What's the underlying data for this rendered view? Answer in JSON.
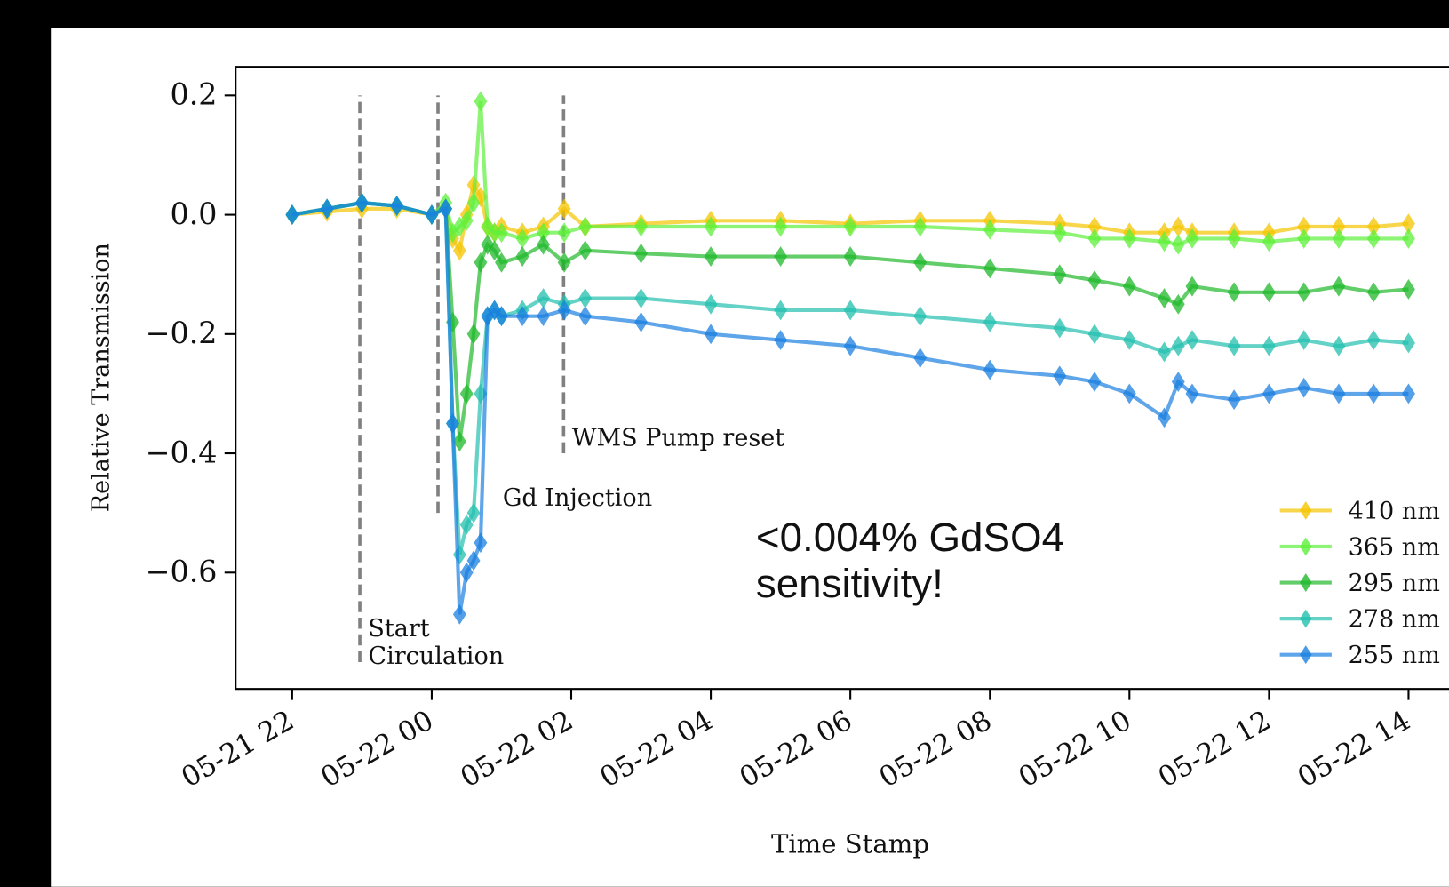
{
  "chart_data": {
    "type": "line",
    "xlabel": "Time Stamp",
    "ylabel": "Relative Transmission",
    "x": [
      0,
      0.5,
      1,
      1.5,
      2,
      2.2,
      2.3,
      2.4,
      2.5,
      2.6,
      2.7,
      2.8,
      2.9,
      3.0,
      3.3,
      3.6,
      3.9,
      4.2,
      5,
      6,
      7,
      8,
      9,
      10,
      11,
      11.5,
      12,
      12.5,
      12.7,
      12.9,
      13.5,
      14,
      14.5,
      15,
      15.5,
      16
    ],
    "xlim": [
      -0.81,
      16.58
    ],
    "xticks": [
      {
        "value": 0,
        "label": "05-21 22"
      },
      {
        "value": 2,
        "label": "05-22 00"
      },
      {
        "value": 4,
        "label": "05-22 02"
      },
      {
        "value": 6,
        "label": "05-22 04"
      },
      {
        "value": 8,
        "label": "05-22 06"
      },
      {
        "value": 10,
        "label": "05-22 08"
      },
      {
        "value": 12,
        "label": "05-22 10"
      },
      {
        "value": 14,
        "label": "05-22 12"
      },
      {
        "value": 16,
        "label": "05-22 14"
      }
    ],
    "ylim": [
      -0.795,
      0.248
    ],
    "yticks": [
      {
        "value": 0.2,
        "label": "0.2"
      },
      {
        "value": 0.0,
        "label": "0.0"
      },
      {
        "value": -0.2,
        "label": "−0.2"
      },
      {
        "value": -0.4,
        "label": "−0.4"
      },
      {
        "value": -0.6,
        "label": "−0.6"
      }
    ],
    "legend": "lower right",
    "series": [
      {
        "name": "410 nm",
        "color": "#f5c400",
        "values": [
          0,
          0.005,
          0.01,
          0.01,
          0,
          0.01,
          -0.04,
          -0.06,
          0,
          0.05,
          0.03,
          -0.02,
          -0.03,
          -0.02,
          -0.03,
          -0.02,
          0.01,
          -0.02,
          -0.015,
          -0.01,
          -0.01,
          -0.015,
          -0.01,
          -0.01,
          -0.015,
          -0.02,
          -0.03,
          -0.03,
          -0.02,
          -0.03,
          -0.03,
          -0.03,
          -0.02,
          -0.02,
          -0.02,
          -0.015
        ]
      },
      {
        "name": "365 nm",
        "color": "#5ef03a",
        "values": [
          0,
          0.01,
          0.02,
          0.015,
          0,
          0.02,
          -0.03,
          -0.02,
          -0.01,
          0.02,
          0.19,
          -0.02,
          -0.03,
          -0.03,
          -0.04,
          -0.03,
          -0.03,
          -0.02,
          -0.02,
          -0.02,
          -0.02,
          -0.02,
          -0.02,
          -0.025,
          -0.03,
          -0.04,
          -0.04,
          -0.045,
          -0.05,
          -0.04,
          -0.04,
          -0.045,
          -0.04,
          -0.04,
          -0.04,
          -0.04
        ]
      },
      {
        "name": "295 nm",
        "color": "#1fb82a",
        "values": [
          0,
          0.01,
          0.02,
          0.015,
          0,
          0.01,
          -0.18,
          -0.38,
          -0.3,
          -0.2,
          -0.08,
          -0.05,
          -0.06,
          -0.08,
          -0.07,
          -0.05,
          -0.08,
          -0.06,
          -0.065,
          -0.07,
          -0.07,
          -0.07,
          -0.08,
          -0.09,
          -0.1,
          -0.11,
          -0.12,
          -0.14,
          -0.15,
          -0.12,
          -0.13,
          -0.13,
          -0.13,
          -0.12,
          -0.13,
          -0.125
        ]
      },
      {
        "name": "278 nm",
        "color": "#22bfae",
        "values": [
          0,
          0.01,
          0.02,
          0.015,
          0,
          0.01,
          -0.35,
          -0.57,
          -0.52,
          -0.5,
          -0.3,
          -0.17,
          -0.16,
          -0.17,
          -0.16,
          -0.14,
          -0.15,
          -0.14,
          -0.14,
          -0.15,
          -0.16,
          -0.16,
          -0.17,
          -0.18,
          -0.19,
          -0.2,
          -0.21,
          -0.23,
          -0.22,
          -0.21,
          -0.22,
          -0.22,
          -0.21,
          -0.22,
          -0.21,
          -0.215
        ]
      },
      {
        "name": "255 nm",
        "color": "#1a7fe0",
        "values": [
          0,
          0.01,
          0.02,
          0.015,
          0,
          0.01,
          -0.35,
          -0.67,
          -0.6,
          -0.58,
          -0.55,
          -0.17,
          -0.16,
          -0.17,
          -0.17,
          -0.17,
          -0.16,
          -0.17,
          -0.18,
          -0.2,
          -0.21,
          -0.22,
          -0.24,
          -0.26,
          -0.27,
          -0.28,
          -0.3,
          -0.34,
          -0.28,
          -0.3,
          -0.31,
          -0.3,
          -0.29,
          -0.3,
          -0.3,
          -0.3
        ]
      }
    ],
    "vlines": [
      {
        "x": 0.97,
        "ymin": -0.75,
        "ymax": 0.2,
        "label": [
          "Start",
          "Circulation"
        ]
      },
      {
        "x": 2.09,
        "ymin": -0.5,
        "ymax": 0.2,
        "label": [
          "Gd Injection"
        ]
      },
      {
        "x": 3.89,
        "ymin": -0.4,
        "ymax": 0.2,
        "label": [
          "WMS Pump reset"
        ]
      }
    ],
    "note": [
      "<0.004% GdSO4",
      "sensitivity!"
    ]
  }
}
